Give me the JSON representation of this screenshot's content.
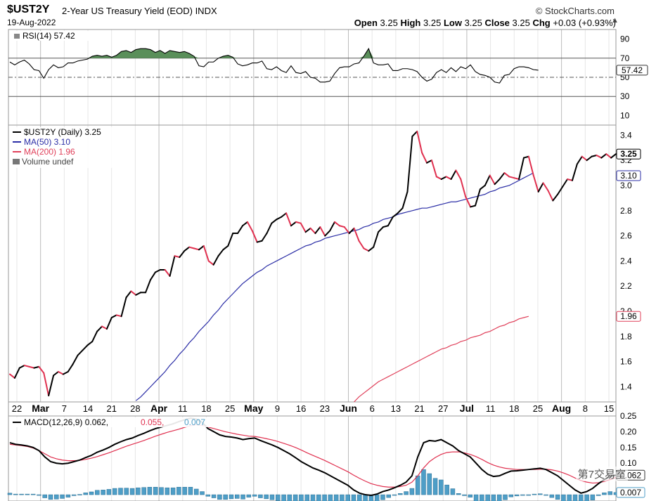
{
  "header": {
    "ticker": "$UST2Y",
    "description": "2-Year US Treasury Yield (EOD)",
    "exchange": "INDX",
    "brand": "© StockCharts.com",
    "date": "19-Aug-2022",
    "open_label": "Open",
    "open": "3.25",
    "high_label": "High",
    "high": "3.25",
    "low_label": "Low",
    "low": "3.25",
    "close_label": "Close",
    "close": "3.25",
    "chg_label": "Chg",
    "chg": "+0.03 (+0.93%)",
    "scroll_icon": "triangle-up-icon"
  },
  "watermark": "第7交易室",
  "colors": {
    "price": "#000000",
    "down": "#e0304f",
    "ma50": "#2b2ea6",
    "ma200": "#e0405a",
    "rsi_fill": "#5a8f5a",
    "macd_line": "#000000",
    "macd_signal": "#e0304f",
    "hist": "#4e9ec7"
  },
  "chart_data": [
    {
      "type": "line",
      "panel": "rsi",
      "legend": "RSI(14) 57.42",
      "ylim": [
        0,
        100
      ],
      "y_ticks": [
        "90",
        "70",
        "50",
        "30",
        "10"
      ],
      "reference_lines": [
        70,
        50,
        30
      ],
      "last_value_label": "57.42",
      "series": [
        {
          "name": "RSI(14)",
          "values": [
            66,
            63,
            66,
            68,
            64,
            58,
            57,
            49,
            58,
            63,
            60,
            61,
            65,
            65,
            67,
            68,
            69,
            72,
            73,
            72,
            73,
            71,
            73,
            77,
            78,
            76,
            79,
            80,
            80,
            79,
            76,
            78,
            75,
            78,
            77,
            76,
            77,
            75,
            72,
            62,
            61,
            66,
            66,
            70,
            72,
            73,
            71,
            64,
            62,
            63,
            65,
            65,
            67,
            59,
            58,
            61,
            57,
            55,
            62,
            55,
            54,
            56,
            50,
            49,
            45,
            45,
            46,
            54,
            60,
            61,
            61,
            64,
            65,
            72,
            80,
            65,
            63,
            63,
            64,
            57,
            57,
            59,
            59,
            58,
            56,
            50,
            46,
            48,
            55,
            58,
            55,
            60,
            56,
            61,
            59,
            63,
            56,
            53,
            52,
            50,
            45,
            44,
            52,
            53,
            59,
            61,
            61,
            60,
            58,
            57.42
          ]
        }
      ]
    },
    {
      "type": "line",
      "panel": "price",
      "legend": [
        "$UST2Y (Daily) 3.25",
        "MA(50) 3.10",
        "MA(200) 1.96",
        "Volume undef"
      ],
      "ylim": [
        1.28,
        3.48
      ],
      "y_ticks": [
        "3.4",
        "3.2",
        "3.0",
        "2.8",
        "2.6",
        "2.4",
        "2.2",
        "2.0",
        "1.8",
        "1.6",
        "1.4"
      ],
      "last_value_labels": [
        "3.25",
        "3.10",
        "1.96"
      ],
      "series": [
        {
          "name": "$UST2Y",
          "values": [
            1.5,
            1.47,
            1.55,
            1.57,
            1.56,
            1.55,
            1.56,
            1.51,
            1.33,
            1.49,
            1.52,
            1.5,
            1.52,
            1.58,
            1.65,
            1.69,
            1.73,
            1.76,
            1.84,
            1.88,
            1.86,
            1.95,
            1.97,
            1.96,
            2.11,
            2.16,
            2.13,
            2.15,
            2.15,
            2.25,
            2.31,
            2.33,
            2.33,
            2.28,
            2.44,
            2.43,
            2.48,
            2.51,
            2.5,
            2.49,
            2.52,
            2.4,
            2.37,
            2.44,
            2.49,
            2.52,
            2.62,
            2.62,
            2.68,
            2.71,
            2.64,
            2.55,
            2.56,
            2.62,
            2.7,
            2.73,
            2.75,
            2.78,
            2.68,
            2.71,
            2.7,
            2.63,
            2.66,
            2.62,
            2.67,
            2.6,
            2.64,
            2.71,
            2.68,
            2.67,
            2.62,
            2.66,
            2.56,
            2.5,
            2.48,
            2.51,
            2.63,
            2.67,
            2.68,
            2.75,
            2.78,
            2.82,
            2.95,
            3.39,
            3.43,
            3.26,
            3.18,
            3.2,
            3.07,
            3.05,
            3.07,
            3.05,
            3.12,
            3.05,
            2.91,
            2.83,
            2.84,
            2.97,
            3.0,
            3.08,
            3.01,
            3.05,
            3.1,
            3.07,
            3.06,
            3.05,
            3.22,
            3.23,
            3.08,
            2.95,
            3.02,
            2.96,
            2.88,
            2.93,
            2.99,
            3.05,
            3.04,
            3.17,
            3.23,
            3.2,
            3.23,
            3.24,
            3.22,
            3.25,
            3.22,
            3.25
          ]
        },
        {
          "name": "MA(50)",
          "x_start": 26,
          "values": [
            1.29,
            1.32,
            1.36,
            1.4,
            1.44,
            1.48,
            1.52,
            1.57,
            1.61,
            1.66,
            1.7,
            1.75,
            1.79,
            1.84,
            1.88,
            1.92,
            1.97,
            2.01,
            2.06,
            2.1,
            2.14,
            2.18,
            2.22,
            2.25,
            2.28,
            2.31,
            2.33,
            2.36,
            2.38,
            2.4,
            2.42,
            2.44,
            2.46,
            2.48,
            2.5,
            2.52,
            2.53,
            2.55,
            2.56,
            2.58,
            2.59,
            2.6,
            2.61,
            2.62,
            2.63,
            2.64,
            2.65,
            2.67,
            2.68,
            2.7,
            2.71,
            2.73,
            2.74,
            2.75,
            2.77,
            2.78,
            2.79,
            2.8,
            2.81,
            2.82,
            2.82,
            2.83,
            2.84,
            2.85,
            2.86,
            2.87,
            2.87,
            2.88,
            2.89,
            2.9,
            2.91,
            2.92,
            2.93,
            2.95,
            2.96,
            2.98,
            2.99,
            3.0,
            3.02,
            3.04,
            3.06,
            3.08,
            3.1
          ]
        },
        {
          "name": "MA(200)",
          "x_start": 71,
          "values": [
            1.28,
            1.32,
            1.35,
            1.38,
            1.41,
            1.44,
            1.46,
            1.48,
            1.5,
            1.52,
            1.54,
            1.56,
            1.58,
            1.6,
            1.62,
            1.64,
            1.66,
            1.68,
            1.7,
            1.71,
            1.73,
            1.74,
            1.76,
            1.77,
            1.79,
            1.8,
            1.81,
            1.83,
            1.84,
            1.86,
            1.88,
            1.89,
            1.91,
            1.92,
            1.94,
            1.95,
            1.96
          ]
        }
      ]
    },
    {
      "type": "line",
      "panel": "macd",
      "legend": [
        "MACD(12,26,9) 0.062",
        "0.055",
        "0.007"
      ],
      "ylim": [
        -0.02,
        0.25
      ],
      "y_ticks": [
        "0.25",
        "0.20",
        "0.15",
        "0.10"
      ],
      "last_value_labels": [
        "0.062",
        "0.007"
      ],
      "series": [
        {
          "name": "MACD",
          "values": [
            0.165,
            0.16,
            0.158,
            0.155,
            0.15,
            0.14,
            0.12,
            0.105,
            0.1,
            0.098,
            0.1,
            0.105,
            0.11,
            0.118,
            0.125,
            0.135,
            0.142,
            0.15,
            0.16,
            0.168,
            0.175,
            0.18,
            0.188,
            0.195,
            0.203,
            0.21,
            0.215,
            0.22,
            0.225,
            0.232,
            0.238,
            0.243,
            0.24,
            0.23,
            0.21,
            0.2,
            0.19,
            0.185,
            0.183,
            0.18,
            0.175,
            0.178,
            0.18,
            0.172,
            0.165,
            0.158,
            0.15,
            0.14,
            0.13,
            0.118,
            0.105,
            0.095,
            0.085,
            0.078,
            0.07,
            0.06,
            0.05,
            0.04,
            0.03,
            0.015,
            0.005,
            0.0,
            -0.002,
            0.002,
            0.01,
            0.015,
            0.022,
            0.03,
            0.04,
            0.06,
            0.12,
            0.165,
            0.172,
            0.17,
            0.175,
            0.165,
            0.155,
            0.14,
            0.13,
            0.12,
            0.1,
            0.08,
            0.065,
            0.058,
            0.06,
            0.068,
            0.075,
            0.076,
            0.078,
            0.08,
            0.082,
            0.084,
            0.08,
            0.07,
            0.06,
            0.045,
            0.03,
            0.015,
            0.005,
            0.01,
            0.02,
            0.035,
            0.048,
            0.058,
            0.062
          ]
        },
        {
          "name": "Signal",
          "values": [
            0.16,
            0.158,
            0.156,
            0.153,
            0.148,
            0.14,
            0.13,
            0.12,
            0.114,
            0.11,
            0.108,
            0.108,
            0.109,
            0.112,
            0.116,
            0.121,
            0.127,
            0.133,
            0.14,
            0.147,
            0.154,
            0.16,
            0.166,
            0.172,
            0.179,
            0.186,
            0.192,
            0.198,
            0.203,
            0.208,
            0.214,
            0.219,
            0.222,
            0.22,
            0.215,
            0.21,
            0.205,
            0.2,
            0.196,
            0.192,
            0.189,
            0.186,
            0.185,
            0.182,
            0.178,
            0.174,
            0.169,
            0.163,
            0.157,
            0.15,
            0.142,
            0.133,
            0.125,
            0.117,
            0.109,
            0.1,
            0.091,
            0.082,
            0.073,
            0.062,
            0.052,
            0.043,
            0.035,
            0.03,
            0.026,
            0.024,
            0.024,
            0.026,
            0.03,
            0.04,
            0.06,
            0.085,
            0.105,
            0.118,
            0.128,
            0.134,
            0.136,
            0.136,
            0.133,
            0.128,
            0.121,
            0.112,
            0.102,
            0.094,
            0.088,
            0.084,
            0.082,
            0.08,
            0.08,
            0.08,
            0.08,
            0.081,
            0.081,
            0.079,
            0.075,
            0.069,
            0.062,
            0.053,
            0.045,
            0.04,
            0.037,
            0.038,
            0.042,
            0.048,
            0.055
          ]
        },
        {
          "name": "Histogram",
          "values": [
            0.005,
            0.002,
            0.002,
            0.002,
            0.002,
            0.0,
            -0.01,
            -0.015,
            -0.014,
            -0.012,
            -0.008,
            -0.003,
            0.001,
            0.006,
            0.009,
            0.014,
            0.015,
            0.017,
            0.02,
            0.021,
            0.021,
            0.02,
            0.022,
            0.023,
            0.024,
            0.024,
            0.023,
            0.022,
            0.022,
            0.024,
            0.024,
            0.024,
            0.018,
            0.01,
            -0.005,
            -0.01,
            -0.015,
            -0.015,
            -0.013,
            -0.012,
            -0.014,
            -0.008,
            -0.005,
            -0.01,
            -0.013,
            -0.016,
            -0.019,
            -0.023,
            -0.027,
            -0.032,
            -0.037,
            -0.038,
            -0.04,
            -0.039,
            -0.039,
            -0.04,
            -0.041,
            -0.042,
            -0.043,
            -0.047,
            -0.047,
            -0.043,
            -0.037,
            -0.028,
            -0.016,
            -0.009,
            -0.002,
            0.004,
            0.01,
            0.02,
            0.06,
            0.08,
            0.067,
            0.052,
            0.047,
            0.031,
            0.019,
            0.004,
            -0.003,
            -0.008,
            -0.021,
            -0.032,
            -0.037,
            -0.036,
            -0.028,
            -0.016,
            -0.007,
            -0.004,
            -0.002,
            0.0,
            0.002,
            0.003,
            -0.001,
            -0.009,
            -0.015,
            -0.024,
            -0.032,
            -0.038,
            -0.04,
            -0.03,
            -0.017,
            -0.003,
            0.006,
            0.01,
            0.007
          ]
        }
      ]
    }
  ],
  "x_axis": {
    "labels": [
      {
        "text": "22",
        "bold": false
      },
      {
        "text": "Mar",
        "bold": true
      },
      {
        "text": "7",
        "bold": false
      },
      {
        "text": "14",
        "bold": false
      },
      {
        "text": "21",
        "bold": false
      },
      {
        "text": "28",
        "bold": false
      },
      {
        "text": "Apr",
        "bold": true
      },
      {
        "text": "11",
        "bold": false
      },
      {
        "text": "18",
        "bold": false
      },
      {
        "text": "25",
        "bold": false
      },
      {
        "text": "May",
        "bold": true
      },
      {
        "text": "9",
        "bold": false
      },
      {
        "text": "16",
        "bold": false
      },
      {
        "text": "23",
        "bold": false
      },
      {
        "text": "Jun",
        "bold": true
      },
      {
        "text": "6",
        "bold": false
      },
      {
        "text": "13",
        "bold": false
      },
      {
        "text": "21",
        "bold": false
      },
      {
        "text": "27",
        "bold": false
      },
      {
        "text": "Jul",
        "bold": true
      },
      {
        "text": "11",
        "bold": false
      },
      {
        "text": "18",
        "bold": false
      },
      {
        "text": "25",
        "bold": false
      },
      {
        "text": "Aug",
        "bold": true
      },
      {
        "text": "8",
        "bold": false
      },
      {
        "text": "15",
        "bold": false
      }
    ]
  }
}
